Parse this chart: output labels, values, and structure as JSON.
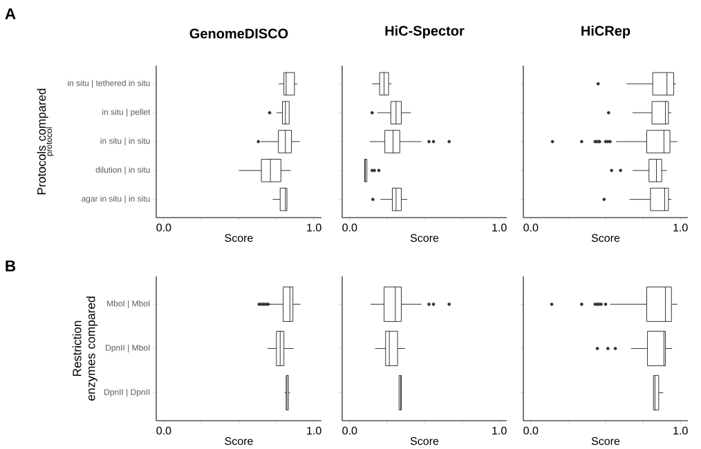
{
  "chart_data": [
    {
      "type": "box",
      "orientation": "horizontal",
      "title": "GenomeDISCO",
      "xlabel": "Score",
      "ylabel": "Protocols compared",
      "annotations": [
        "A",
        "protocol"
      ],
      "categories": [
        "in situ | tethered in situ",
        "in situ | pellet",
        "in situ | in situ",
        "dilution | in situ",
        "agar in situ | in situ"
      ],
      "xlim": [
        -0.05,
        1.05
      ],
      "xticks": [
        {
          "value": 0,
          "label": "0.0"
        },
        {
          "value": 0.25,
          "label": null
        },
        {
          "value": 0.5,
          "label": null
        },
        {
          "value": 0.75,
          "label": null
        },
        {
          "value": 1,
          "label": "1.0"
        }
      ],
      "boxes": [
        {
          "low": 0.766,
          "q1": 0.8,
          "median": 0.815,
          "q3": 0.87,
          "high": 0.89
        },
        {
          "low": 0.75,
          "q1": 0.79,
          "median": 0.81,
          "q3": 0.835,
          "high": 0.835,
          "outliers": [
            0.705
          ]
        },
        {
          "low": 0.645,
          "q1": 0.763,
          "median": 0.81,
          "q3": 0.85,
          "high": 0.905,
          "outliers": [
            0.63
          ]
        },
        {
          "low": 0.5,
          "q1": 0.65,
          "median": 0.71,
          "q3": 0.78,
          "high": 0.845
        },
        {
          "low": 0.725,
          "q1": 0.775,
          "median": 0.81,
          "q3": 0.82,
          "high": 0.82
        }
      ]
    },
    {
      "type": "box",
      "orientation": "horizontal",
      "title": "HiC-Spector",
      "xlabel": "Score",
      "tick_labels": "x",
      "categories": [
        null,
        null,
        null,
        null,
        null
      ],
      "xlim": [
        -0.05,
        1.05
      ],
      "xticks": [
        {
          "value": 0,
          "label": "0.0"
        },
        {
          "value": 0.25,
          "label": null
        },
        {
          "value": 0.5,
          "label": null
        },
        {
          "value": 0.75,
          "label": null
        },
        {
          "value": 1,
          "label": "1.0"
        }
      ],
      "boxes": [
        {
          "low": 0.15,
          "q1": 0.2,
          "median": 0.23,
          "q3": 0.26,
          "high": 0.28
        },
        {
          "low": 0.185,
          "q1": 0.275,
          "median": 0.31,
          "q3": 0.345,
          "high": 0.41,
          "outliers": [
            0.15
          ]
        },
        {
          "low": 0.135,
          "q1": 0.235,
          "median": 0.29,
          "q3": 0.335,
          "high": 0.48,
          "outliers": [
            0.53,
            0.56,
            0.665
          ]
        },
        {
          "low": 0.1,
          "q1": 0.1,
          "median": 0.105,
          "q3": 0.115,
          "high": 0.115,
          "outliers": [
            0.15,
            0.165,
            0.195
          ]
        },
        {
          "low": 0.205,
          "q1": 0.285,
          "median": 0.31,
          "q3": 0.345,
          "high": 0.385,
          "outliers": [
            0.155
          ]
        }
      ]
    },
    {
      "type": "box",
      "orientation": "horizontal",
      "title": "HiCRep",
      "xlabel": "Score",
      "tick_labels": "x",
      "categories": [
        null,
        null,
        null,
        null,
        null
      ],
      "xlim": [
        -0.05,
        1.05
      ],
      "xticks": [
        {
          "value": 0,
          "label": "0.0"
        },
        {
          "value": 0.25,
          "label": null
        },
        {
          "value": 0.5,
          "label": null
        },
        {
          "value": 0.75,
          "label": null
        },
        {
          "value": 1,
          "label": "1.0"
        }
      ],
      "boxes": [
        {
          "low": 0.64,
          "q1": 0.815,
          "median": 0.91,
          "q3": 0.955,
          "high": 0.97,
          "outliers": [
            0.45
          ]
        },
        {
          "low": 0.68,
          "q1": 0.81,
          "median": 0.9,
          "q3": 0.92,
          "high": 0.94,
          "outliers": [
            0.52
          ]
        },
        {
          "low": 0.57,
          "q1": 0.775,
          "median": 0.89,
          "q3": 0.93,
          "high": 0.98,
          "outliers": [
            0.145,
            0.34,
            0.43,
            0.44,
            0.455,
            0.46,
            0.5,
            0.515,
            0.53
          ]
        },
        {
          "low": 0.68,
          "q1": 0.79,
          "median": 0.84,
          "q3": 0.875,
          "high": 0.91,
          "outliers": [
            0.54,
            0.6
          ]
        },
        {
          "low": 0.66,
          "q1": 0.8,
          "median": 0.895,
          "q3": 0.92,
          "high": 0.94,
          "outliers": [
            0.49
          ]
        }
      ]
    },
    {
      "type": "box",
      "orientation": "horizontal",
      "xlabel": "Score",
      "ylabel": "Restriction enzymes compared",
      "annotations": [
        "B"
      ],
      "categories": [
        "MboI | MboI",
        "DpnII | MboI",
        "DpnII | DpnII"
      ],
      "xlim": [
        -0.05,
        1.05
      ],
      "xticks": [
        {
          "value": 0,
          "label": "0.0"
        },
        {
          "value": 0.25,
          "label": null
        },
        {
          "value": 0.5,
          "label": null
        },
        {
          "value": 0.75,
          "label": null
        },
        {
          "value": 1,
          "label": "1.0"
        }
      ],
      "boxes": [
        {
          "low": 0.7,
          "q1": 0.795,
          "median": 0.84,
          "q3": 0.86,
          "high": 0.91,
          "outliers": [
            0.635,
            0.65,
            0.665,
            0.68,
            0.695
          ]
        },
        {
          "low": 0.69,
          "q1": 0.75,
          "median": 0.775,
          "q3": 0.8,
          "high": 0.865
        },
        {
          "low": 0.805,
          "q1": 0.815,
          "median": 0.82,
          "q3": 0.83,
          "high": 0.84
        }
      ]
    },
    {
      "type": "box",
      "orientation": "horizontal",
      "xlabel": "Score",
      "tick_labels": "x",
      "categories": [
        null,
        null,
        null
      ],
      "xlim": [
        -0.05,
        1.05
      ],
      "xticks": [
        {
          "value": 0,
          "label": "0.0"
        },
        {
          "value": 0.25,
          "label": null
        },
        {
          "value": 0.5,
          "label": null
        },
        {
          "value": 0.75,
          "label": null
        },
        {
          "value": 1,
          "label": "1.0"
        }
      ],
      "boxes": [
        {
          "low": 0.14,
          "q1": 0.23,
          "median": 0.305,
          "q3": 0.345,
          "high": 0.48,
          "outliers": [
            0.53,
            0.56,
            0.665
          ]
        },
        {
          "low": 0.17,
          "q1": 0.24,
          "median": 0.265,
          "q3": 0.32,
          "high": 0.37
        },
        {
          "low": 0.33,
          "q1": 0.33,
          "median": 0.34,
          "q3": 0.345,
          "high": 0.345
        }
      ]
    },
    {
      "type": "box",
      "orientation": "horizontal",
      "xlabel": "Score",
      "tick_labels": "x",
      "categories": [
        null,
        null,
        null
      ],
      "xlim": [
        -0.05,
        1.05
      ],
      "xticks": [
        {
          "value": 0,
          "label": "0.0"
        },
        {
          "value": 0.25,
          "label": null
        },
        {
          "value": 0.5,
          "label": null
        },
        {
          "value": 0.75,
          "label": null
        },
        {
          "value": 1,
          "label": "1.0"
        }
      ],
      "boxes": [
        {
          "low": 0.53,
          "q1": 0.775,
          "median": 0.9,
          "q3": 0.94,
          "high": 0.98,
          "outliers": [
            0.14,
            0.34,
            0.43,
            0.445,
            0.455,
            0.47,
            0.5
          ]
        },
        {
          "low": 0.67,
          "q1": 0.78,
          "median": 0.89,
          "q3": 0.9,
          "high": 0.945,
          "outliers": [
            0.445,
            0.515,
            0.565
          ]
        },
        {
          "low": 0.82,
          "q1": 0.82,
          "median": 0.83,
          "q3": 0.855,
          "high": 0.885
        }
      ]
    }
  ]
}
